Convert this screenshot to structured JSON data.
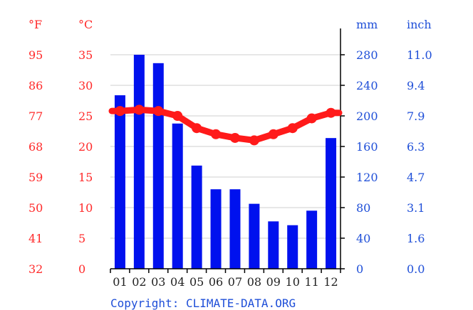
{
  "chart_data": {
    "type": "bar+line",
    "categories": [
      "01",
      "02",
      "03",
      "04",
      "05",
      "06",
      "07",
      "08",
      "09",
      "10",
      "11",
      "12"
    ],
    "series": [
      {
        "kind": "bar",
        "unit": "mm",
        "values": [
          227,
          280,
          269,
          190,
          135,
          104,
          104,
          85,
          62,
          57,
          76,
          171
        ]
      },
      {
        "kind": "line",
        "unit": "°C",
        "values": [
          25.8,
          26.0,
          25.8,
          25.0,
          23.0,
          22.0,
          21.4,
          21.0,
          22.0,
          23.0,
          24.6,
          25.5
        ]
      }
    ],
    "axes": {
      "left_f": {
        "unit_label": "°F",
        "ticks": [
          "95",
          "86",
          "77",
          "68",
          "59",
          "50",
          "41",
          "32"
        ]
      },
      "left_c": {
        "unit_label": "°C",
        "ticks": [
          "35",
          "30",
          "25",
          "20",
          "15",
          "10",
          "5",
          "0"
        ],
        "range": [
          0,
          35
        ]
      },
      "right_mm": {
        "unit_label": "mm",
        "ticks": [
          "280",
          "240",
          "200",
          "160",
          "120",
          "80",
          "40",
          "0"
        ],
        "range": [
          0,
          280
        ]
      },
      "right_in": {
        "unit_label": "inch",
        "ticks": [
          "11.0",
          "9.4",
          "7.9",
          "6.3",
          "4.7",
          "3.1",
          "1.6",
          "0.0"
        ]
      }
    },
    "grid": true,
    "colors": {
      "bars": "#0011ee",
      "line": "#ff1a1a",
      "temp_text": "#ff2a2a",
      "precip_text": "#1f4fd8",
      "grid": "#cfcfcf"
    },
    "copyright": "Copyright: CLIMATE-DATA.ORG"
  }
}
